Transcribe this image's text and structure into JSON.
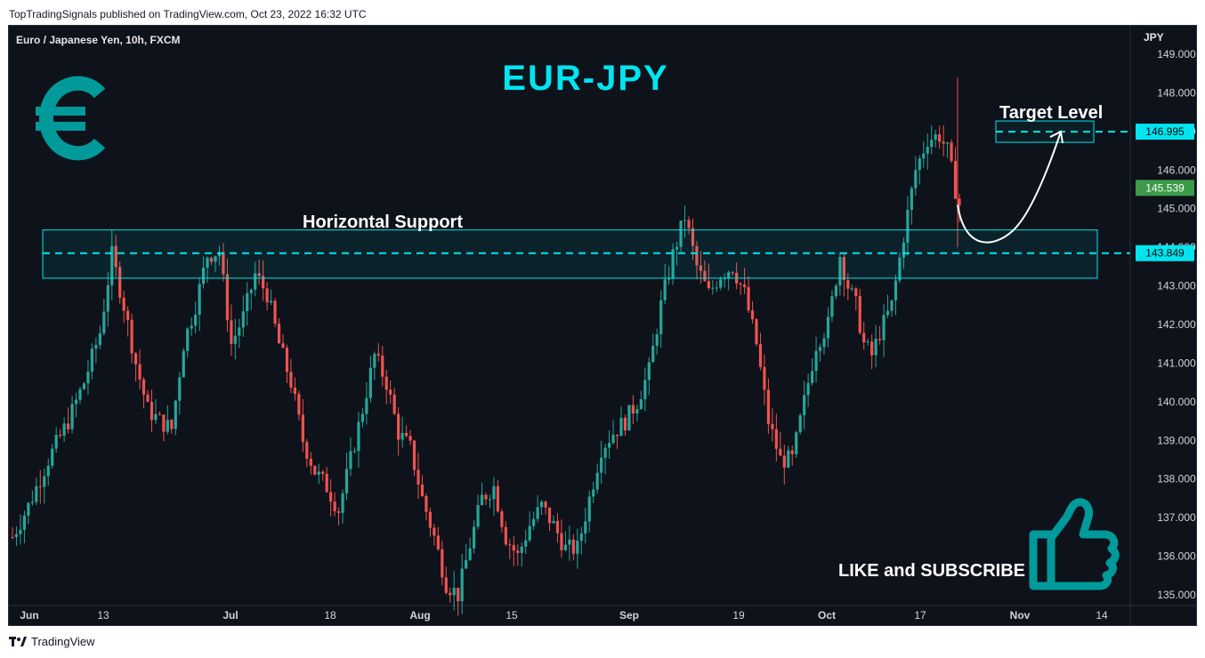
{
  "header": {
    "publish_line": "TopTradingSignals published on TradingView.com, Oct 23, 2022 16:32 UTC"
  },
  "footer": {
    "brand": "TradingView"
  },
  "colors": {
    "background": "#0e121a",
    "up_candle": "#26a69a",
    "down_candle": "#ef5350",
    "accent_cyan": "#00e5f0",
    "euro_logo": "#009a9a",
    "price_tag_green": "#3c9a4a"
  },
  "icons": {
    "logo": "euro-icon",
    "thumbs": "thumbs-up-icon",
    "brand_logo": "tradingview-logo-icon"
  },
  "chart_data": {
    "type": "candlestick",
    "symbol_label": "Euro / Japanese Yen, 10h, FXCM",
    "title": "EUR-JPY",
    "currency_label": "JPY",
    "ylim": [
      134.5,
      149.5
    ],
    "y_ticks": [
      "149.000",
      "148.000",
      "147.000",
      "146.000",
      "145.000",
      "144.000",
      "143.000",
      "142.000",
      "141.000",
      "140.000",
      "139.000",
      "138.000",
      "137.000",
      "136.000",
      "135.000"
    ],
    "x_tick_labels": [
      {
        "label": "Jun",
        "bold": true
      },
      {
        "label": "13",
        "bold": false
      },
      {
        "label": "Jul",
        "bold": true
      },
      {
        "label": "18",
        "bold": false
      },
      {
        "label": "Aug",
        "bold": true
      },
      {
        "label": "15",
        "bold": false
      },
      {
        "label": "Sep",
        "bold": true
      },
      {
        "label": "19",
        "bold": false
      },
      {
        "label": "Oct",
        "bold": true
      },
      {
        "label": "17",
        "bold": false
      },
      {
        "label": "Nov",
        "bold": true
      },
      {
        "label": "14",
        "bold": false
      }
    ],
    "price_path": [
      [
        0,
        136.5
      ],
      [
        4,
        137.3
      ],
      [
        9,
        138.5
      ],
      [
        14,
        139.5
      ],
      [
        18,
        140.5
      ],
      [
        22,
        141.8
      ],
      [
        25,
        143.8
      ],
      [
        28,
        142.5
      ],
      [
        31,
        141.0
      ],
      [
        34,
        139.8
      ],
      [
        37,
        139.5
      ],
      [
        40,
        139.3
      ],
      [
        43,
        141.5
      ],
      [
        46,
        142.5
      ],
      [
        49,
        143.8
      ],
      [
        52,
        143.9
      ],
      [
        55,
        141.5
      ],
      [
        58,
        142.2
      ],
      [
        61,
        143.3
      ],
      [
        64,
        142.8
      ],
      [
        67,
        141.5
      ],
      [
        70,
        140.5
      ],
      [
        73,
        139.0
      ],
      [
        76,
        138.2
      ],
      [
        79,
        137.8
      ],
      [
        82,
        137.2
      ],
      [
        85,
        138.5
      ],
      [
        88,
        139.8
      ],
      [
        91,
        141.2
      ],
      [
        94,
        140.5
      ],
      [
        97,
        139.2
      ],
      [
        100,
        138.8
      ],
      [
        103,
        137.5
      ],
      [
        106,
        136.5
      ],
      [
        109,
        135.3
      ],
      [
        112,
        135.0
      ],
      [
        115,
        136.3
      ],
      [
        118,
        137.5
      ],
      [
        121,
        137.8
      ],
      [
        124,
        136.5
      ],
      [
        127,
        136.0
      ],
      [
        130,
        136.8
      ],
      [
        133,
        137.3
      ],
      [
        136,
        136.8
      ],
      [
        139,
        136.2
      ],
      [
        142,
        136.2
      ],
      [
        145,
        137.5
      ],
      [
        148,
        138.8
      ],
      [
        151,
        139.2
      ],
      [
        154,
        139.5
      ],
      [
        157,
        140.0
      ],
      [
        160,
        140.8
      ],
      [
        163,
        142.5
      ],
      [
        166,
        143.8
      ],
      [
        169,
        144.8
      ],
      [
        172,
        143.5
      ],
      [
        175,
        142.8
      ],
      [
        178,
        143.3
      ],
      [
        181,
        143.5
      ],
      [
        184,
        142.8
      ],
      [
        187,
        141.5
      ],
      [
        190,
        139.5
      ],
      [
        193,
        138.5
      ],
      [
        196,
        138.5
      ],
      [
        199,
        140.0
      ],
      [
        202,
        141.5
      ],
      [
        205,
        142.0
      ],
      [
        208,
        143.8
      ],
      [
        210,
        143.0
      ],
      [
        212,
        142.5
      ],
      [
        214,
        141.5
      ],
      [
        216,
        141.2
      ],
      [
        218,
        141.8
      ],
      [
        221,
        142.5
      ],
      [
        224,
        144.3
      ],
      [
        227,
        146.0
      ],
      [
        230,
        146.8
      ],
      [
        233,
        146.9
      ],
      [
        235,
        146.5
      ],
      [
        237,
        145.5
      ],
      [
        238,
        145.1
      ]
    ],
    "last_price": "145.539",
    "support_zone": {
      "label": "Horizontal Support",
      "low": 143.2,
      "high": 144.45,
      "level": 143.849,
      "level_label": "143.849"
    },
    "target": {
      "label": "Target Level",
      "level": 146.995,
      "level_label": "146.995"
    },
    "projection": {
      "from": 145.1,
      "bottom": 144.2,
      "to": 146.995
    },
    "promo_text": "LIKE and SUBSCRIBE"
  }
}
